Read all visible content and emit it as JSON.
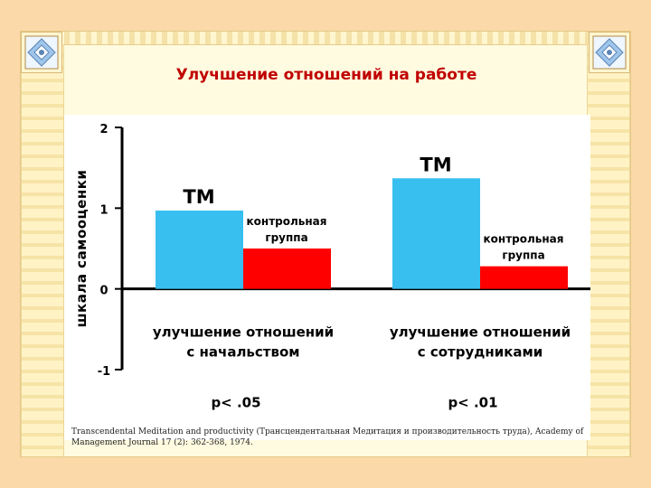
{
  "title": "Улучшение отношений на работе",
  "footnote": "Transcendental Meditation and productivity (Трансцендентальная Медитация и производительность труда), Academy of Management Journal 17 (2): 362-368, 1974.",
  "colors": {
    "title": "#c00000",
    "tm": "#38bff0",
    "control": "#ff0000",
    "background": "#fbd9a8"
  },
  "chart_data": {
    "type": "bar",
    "ylabel": "шкала самооценки",
    "ylim": [
      -1,
      2
    ],
    "yticks": [
      "2",
      "1",
      "0",
      "-1"
    ],
    "categories": [
      "улучшение отношений с начальством",
      "улучшение отношений с сотрудниками"
    ],
    "category_lines": [
      [
        "улучшение отношений",
        "с начальством"
      ],
      [
        "улучшение отношений",
        "с сотрудниками"
      ]
    ],
    "series": [
      {
        "name": "ТМ",
        "values": [
          0.97,
          1.37
        ]
      },
      {
        "name": "контрольная группа",
        "values": [
          0.5,
          0.28
        ]
      }
    ],
    "series_label_lines": [
      [
        "ТМ"
      ],
      [
        "контрольная",
        "группа"
      ]
    ],
    "p_values": [
      "p< .05",
      "p< .01"
    ],
    "grid": false
  }
}
